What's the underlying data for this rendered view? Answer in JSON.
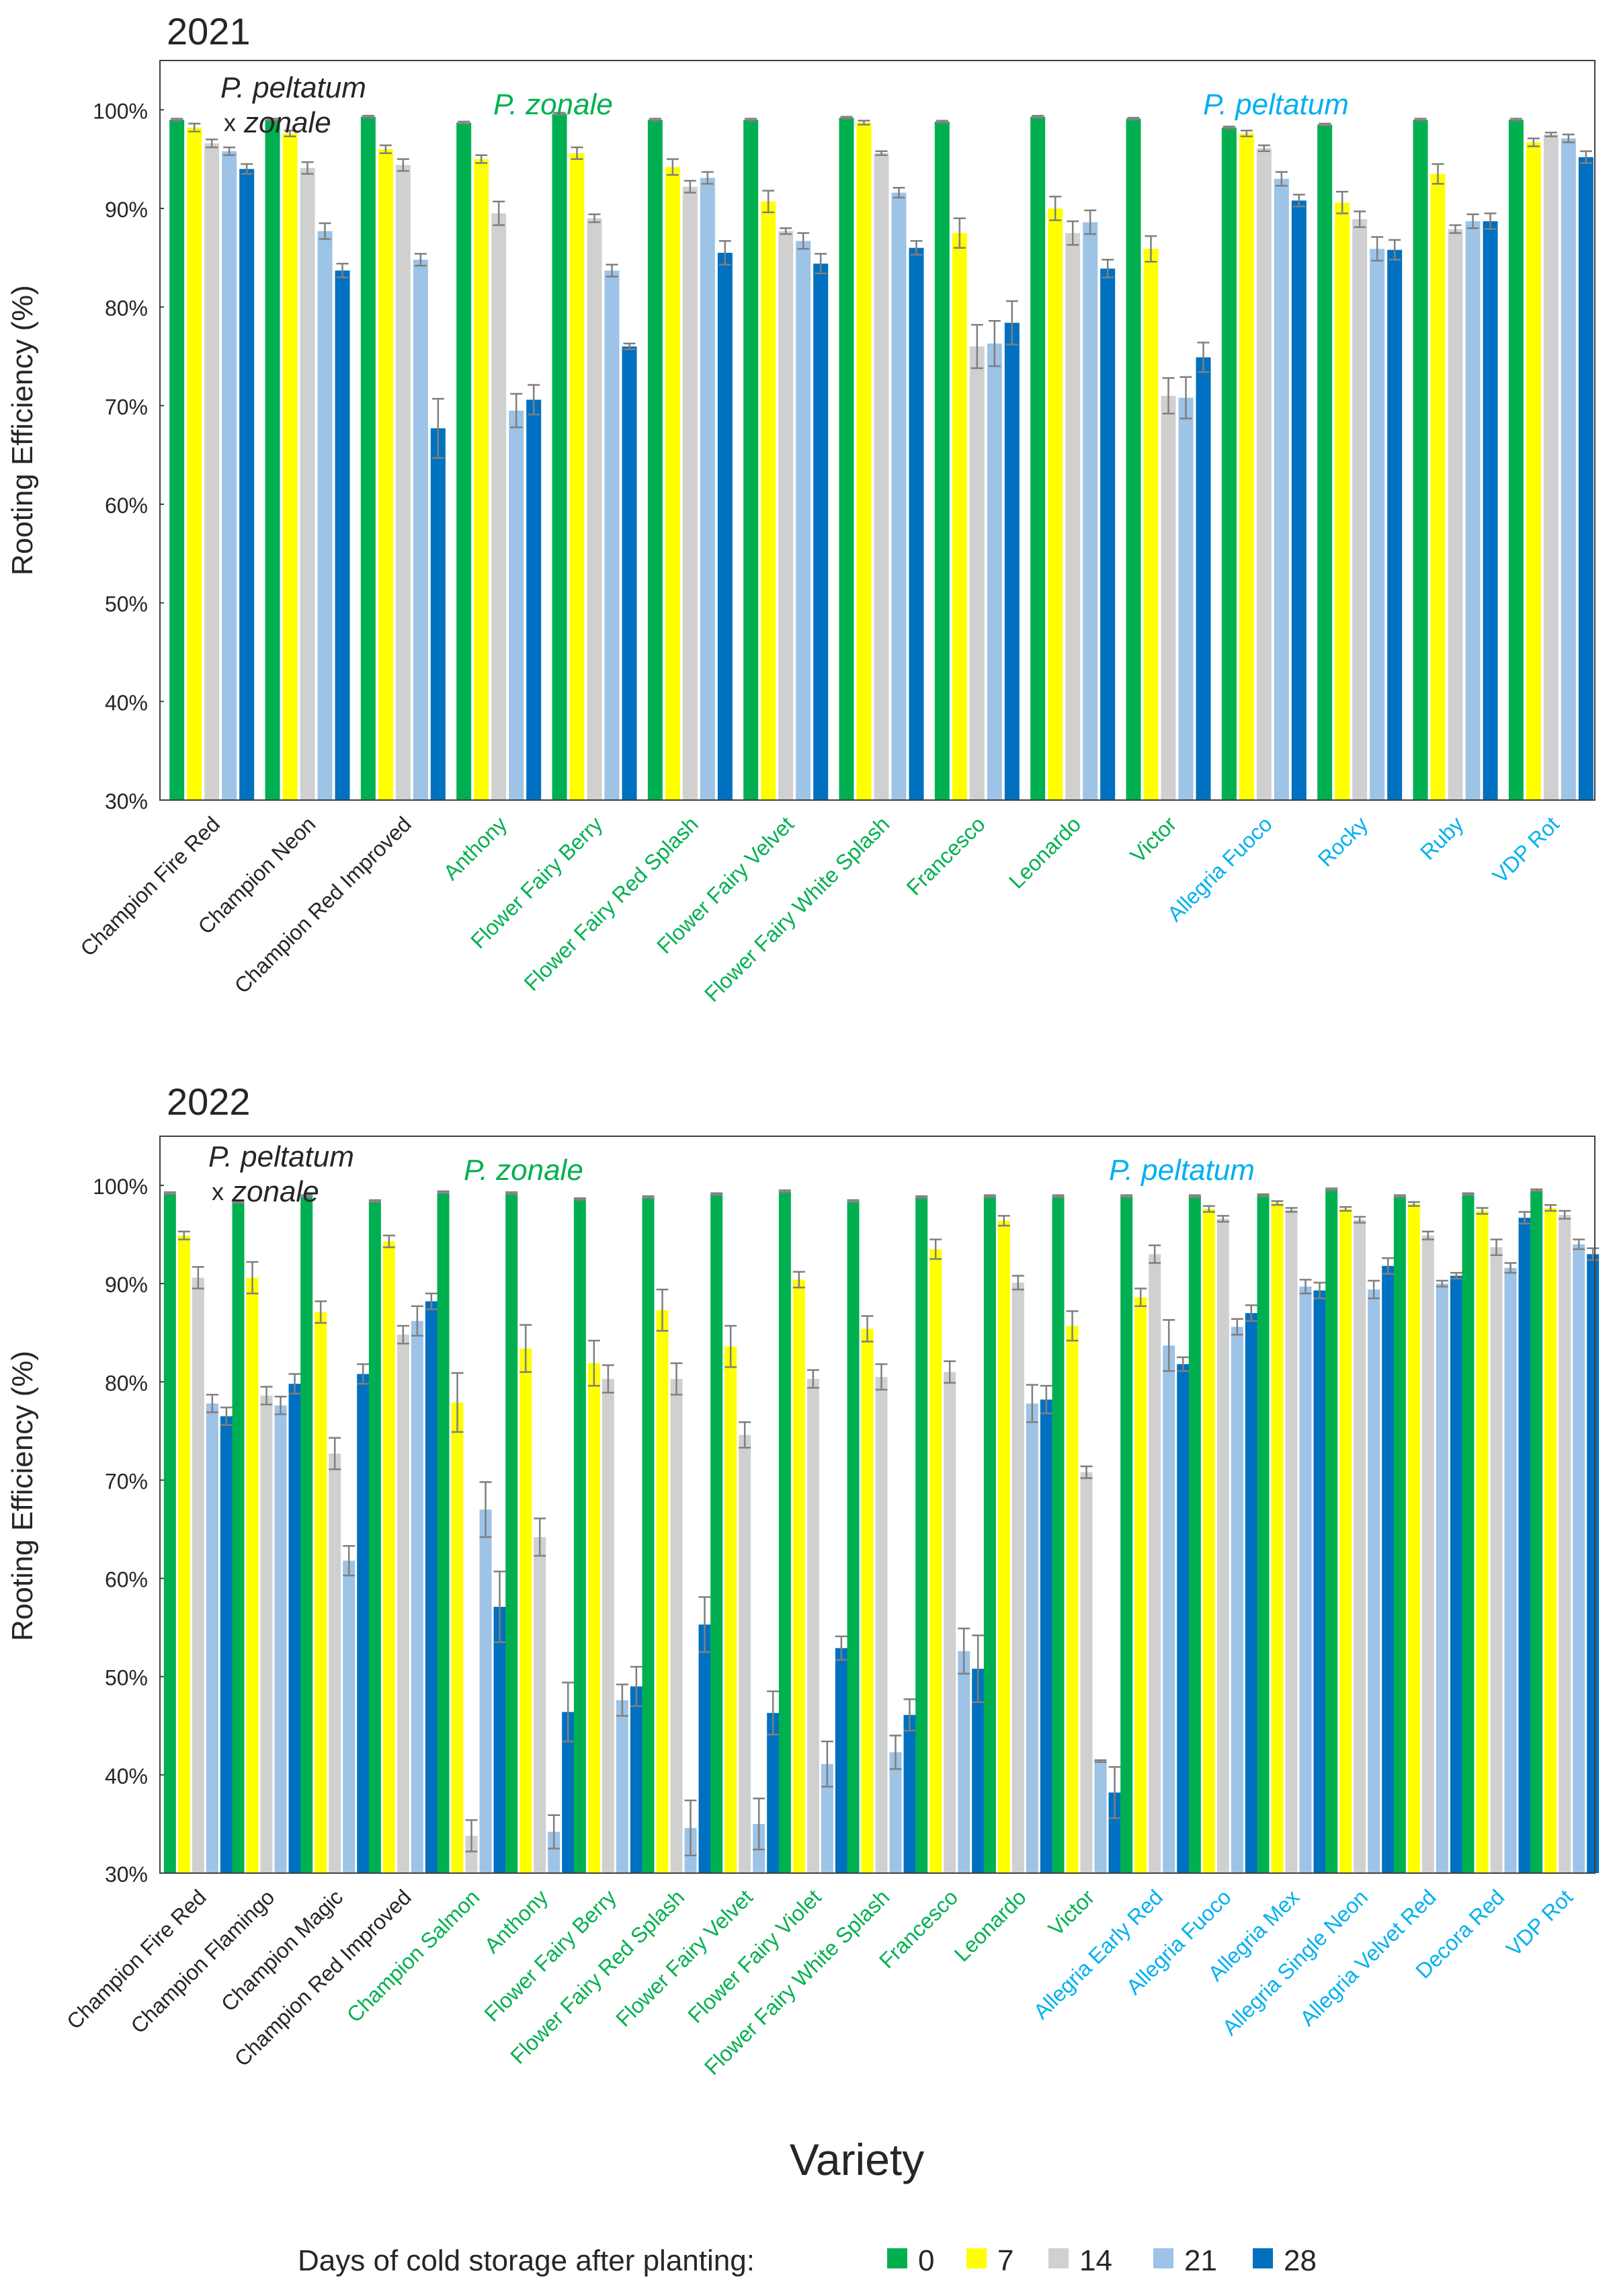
{
  "colors": {
    "zonale": "#00B050",
    "peltatum": "#00B0F0",
    "hybrid": "#262626",
    "s0": "#00B050",
    "s7": "#FFFF00",
    "s14": "#D0D0D0",
    "s21": "#9DC3E6",
    "s28": "#0070C0",
    "errorbar": "#7F7F7F"
  },
  "legend": {
    "title": "Days of cold storage after planting:",
    "labels": [
      "0",
      "7",
      "14",
      "21",
      "28"
    ]
  },
  "xlabel": "Variety",
  "chart_data": [
    {
      "type": "bar",
      "title": "2021",
      "ylabel": "Rooting Efficiency (%)",
      "ylim": [
        30,
        105
      ],
      "yticks": [
        "30%",
        "40%",
        "50%",
        "60%",
        "70%",
        "80%",
        "90%",
        "100%"
      ],
      "group_labels": {
        "hybrid_line1": "P. peltatum",
        "hybrid_line2_x": "x",
        "hybrid_line2": "zonale",
        "zonale": "P. zonale",
        "peltatum": "P. peltatum"
      },
      "series_names": [
        "0",
        "7",
        "14",
        "21",
        "28"
      ],
      "categories": [
        {
          "name": "Champion Fire Red",
          "group": "hybrid"
        },
        {
          "name": "Champion Neon",
          "group": "hybrid"
        },
        {
          "name": "Champion Red Improved",
          "group": "hybrid"
        },
        {
          "name": "Anthony",
          "group": "zonale"
        },
        {
          "name": "Flower Fairy Berry",
          "group": "zonale"
        },
        {
          "name": "Flower Fairy Red Splash",
          "group": "zonale"
        },
        {
          "name": "Flower Fairy Velvet",
          "group": "zonale"
        },
        {
          "name": "Flower Fairy White Splash",
          "group": "zonale"
        },
        {
          "name": "Francesco",
          "group": "zonale"
        },
        {
          "name": "Leonardo",
          "group": "zonale"
        },
        {
          "name": "Victor",
          "group": "zonale"
        },
        {
          "name": "Allegria Fuoco",
          "group": "peltatum"
        },
        {
          "name": "Rocky",
          "group": "peltatum"
        },
        {
          "name": "Ruby",
          "group": "peltatum"
        },
        {
          "name": "VDP Rot",
          "group": "peltatum"
        }
      ],
      "values": [
        [
          99.0,
          98.2,
          96.6,
          95.8,
          94.0
        ],
        [
          99.0,
          97.6,
          94.1,
          87.7,
          83.7
        ],
        [
          99.3,
          96.0,
          94.4,
          84.8,
          67.7
        ],
        [
          98.7,
          95.0,
          89.5,
          69.5,
          70.6
        ],
        [
          99.6,
          95.6,
          89.0,
          83.7,
          76.0
        ],
        [
          99.0,
          94.2,
          92.2,
          93.1,
          85.5
        ],
        [
          99.0,
          90.7,
          87.7,
          86.7,
          84.4
        ],
        [
          99.2,
          98.7,
          95.6,
          91.6,
          86.0
        ],
        [
          98.8,
          87.5,
          76.0,
          76.3,
          78.4
        ],
        [
          99.3,
          90.0,
          87.5,
          88.6,
          83.9
        ],
        [
          99.1,
          85.9,
          71.0,
          70.8,
          74.9
        ],
        [
          98.2,
          97.6,
          96.1,
          93.0,
          90.8
        ],
        [
          98.5,
          90.6,
          88.9,
          85.9,
          85.8
        ],
        [
          99.0,
          93.5,
          87.9,
          88.7,
          88.7
        ],
        [
          99.0,
          96.7,
          97.5,
          97.1,
          95.2
        ]
      ],
      "errors": [
        [
          0.1,
          0.4,
          0.4,
          0.4,
          0.5
        ],
        [
          0.1,
          0.3,
          0.6,
          0.8,
          0.7
        ],
        [
          0.1,
          0.4,
          0.6,
          0.6,
          3.0
        ],
        [
          0.1,
          0.4,
          1.2,
          1.7,
          1.5
        ],
        [
          0.1,
          0.6,
          0.4,
          0.6,
          0.3
        ],
        [
          0.1,
          0.8,
          0.6,
          0.6,
          1.2
        ],
        [
          0.1,
          1.1,
          0.3,
          0.8,
          1.0
        ],
        [
          0.1,
          0.2,
          0.2,
          0.5,
          0.7
        ],
        [
          0.1,
          1.5,
          2.2,
          2.3,
          2.2
        ],
        [
          0.1,
          1.2,
          1.2,
          1.2,
          0.9
        ],
        [
          0.1,
          1.3,
          1.8,
          2.1,
          1.5
        ],
        [
          0.1,
          0.3,
          0.3,
          0.7,
          0.6
        ],
        [
          0.1,
          1.1,
          0.8,
          1.2,
          1.0
        ],
        [
          0.1,
          1.0,
          0.4,
          0.7,
          0.8
        ],
        [
          0.1,
          0.4,
          0.2,
          0.4,
          0.6
        ]
      ]
    },
    {
      "type": "bar",
      "title": "2022",
      "ylabel": "Rooting Efficiency (%)",
      "ylim": [
        30,
        105
      ],
      "yticks": [
        "30%",
        "40%",
        "50%",
        "60%",
        "70%",
        "80%",
        "90%",
        "100%"
      ],
      "group_labels": {
        "hybrid_line1": "P. peltatum",
        "hybrid_line2_x": "x",
        "hybrid_line2": "zonale",
        "zonale": "P. zonale",
        "peltatum": "P. peltatum"
      },
      "series_names": [
        "0",
        "7",
        "14",
        "21",
        "28"
      ],
      "categories": [
        {
          "name": "Champion Fire Red",
          "group": "hybrid"
        },
        {
          "name": "Champion Flamingo",
          "group": "hybrid"
        },
        {
          "name": "Champion Magic",
          "group": "hybrid"
        },
        {
          "name": "Champion Red Improved",
          "group": "hybrid"
        },
        {
          "name": "Champion Salmon",
          "group": "zonale"
        },
        {
          "name": "Anthony",
          "group": "zonale"
        },
        {
          "name": "Flower Fairy Berry",
          "group": "zonale"
        },
        {
          "name": "Flower Fairy Red Splash",
          "group": "zonale"
        },
        {
          "name": "Flower Fairy Velvet",
          "group": "zonale"
        },
        {
          "name": "Flower Fairy Violet",
          "group": "zonale"
        },
        {
          "name": "Flower Fairy White Splash",
          "group": "zonale"
        },
        {
          "name": "Francesco",
          "group": "zonale"
        },
        {
          "name": "Leonardo",
          "group": "zonale"
        },
        {
          "name": "Victor",
          "group": "zonale"
        },
        {
          "name": "Allegria Early Red",
          "group": "peltatum"
        },
        {
          "name": "Allegria Fuoco",
          "group": "peltatum"
        },
        {
          "name": "Allegria Mex",
          "group": "peltatum"
        },
        {
          "name": "Allegria Single Neon",
          "group": "peltatum"
        },
        {
          "name": "Allegria Velvet Red",
          "group": "peltatum"
        },
        {
          "name": "Decora Red",
          "group": "peltatum"
        },
        {
          "name": "VDP Rot",
          "group": "peltatum"
        }
      ],
      "values": [
        [
          99.2,
          94.9,
          90.6,
          77.8,
          76.5
        ],
        [
          98.3,
          90.6,
          78.6,
          77.6,
          79.8
        ],
        [
          98.9,
          87.1,
          72.7,
          61.8,
          80.8
        ],
        [
          98.4,
          94.3,
          84.8,
          86.2,
          88.2
        ],
        [
          99.3,
          77.9,
          33.8,
          67.0,
          57.1
        ],
        [
          99.2,
          83.4,
          64.2,
          34.2,
          46.4
        ],
        [
          98.6,
          81.9,
          80.3,
          47.6,
          49.0
        ],
        [
          98.8,
          87.3,
          80.3,
          34.6,
          55.3
        ],
        [
          99.1,
          83.6,
          74.6,
          35.0,
          46.3
        ],
        [
          99.4,
          90.4,
          80.3,
          41.1,
          52.9
        ],
        [
          98.4,
          85.4,
          80.5,
          42.3,
          46.1
        ],
        [
          98.8,
          93.5,
          81.0,
          52.6,
          50.8
        ],
        [
          98.9,
          96.4,
          90.1,
          77.8,
          78.2
        ],
        [
          98.9,
          85.7,
          70.8,
          41.4,
          38.2
        ],
        [
          98.9,
          88.6,
          93.0,
          83.7,
          81.8
        ],
        [
          98.9,
          97.6,
          96.6,
          85.6,
          87.0
        ],
        [
          99.0,
          98.2,
          97.5,
          89.7,
          89.3
        ],
        [
          99.6,
          97.6,
          96.5,
          89.4,
          91.8
        ],
        [
          98.9,
          98.1,
          94.9,
          90.0,
          90.8
        ],
        [
          99.1,
          97.4,
          93.7,
          91.6,
          96.7
        ],
        [
          99.5,
          97.7,
          97.0,
          94.0,
          93.0
        ]
      ],
      "errors": [
        [
          0.1,
          0.4,
          1.1,
          0.9,
          0.9
        ],
        [
          0.1,
          1.6,
          0.9,
          0.9,
          1.0
        ],
        [
          0.1,
          1.1,
          1.6,
          1.5,
          1.0
        ],
        [
          0.1,
          0.6,
          0.9,
          1.5,
          0.8
        ],
        [
          0.1,
          3.0,
          1.6,
          2.8,
          3.6
        ],
        [
          0.1,
          2.4,
          1.9,
          1.7,
          3.0
        ],
        [
          0.1,
          2.3,
          1.4,
          1.6,
          2.0
        ],
        [
          0.1,
          2.1,
          1.6,
          2.8,
          2.8
        ],
        [
          0.1,
          2.1,
          1.3,
          2.6,
          2.2
        ],
        [
          0.1,
          0.8,
          0.9,
          2.3,
          1.2
        ],
        [
          0.1,
          1.3,
          1.3,
          1.7,
          1.6
        ],
        [
          0.1,
          1.0,
          1.1,
          2.3,
          3.4
        ],
        [
          0.1,
          0.5,
          0.7,
          1.9,
          1.4
        ],
        [
          0.1,
          1.5,
          0.6,
          0.1,
          2.6
        ],
        [
          0.1,
          0.9,
          0.9,
          2.6,
          0.7
        ],
        [
          0.1,
          0.3,
          0.3,
          0.8,
          0.8
        ],
        [
          0.1,
          0.2,
          0.2,
          0.7,
          0.8
        ],
        [
          0.1,
          0.2,
          0.3,
          0.9,
          0.8
        ],
        [
          0.1,
          0.2,
          0.4,
          0.3,
          0.3
        ],
        [
          0.1,
          0.3,
          0.8,
          0.5,
          0.6
        ],
        [
          0.1,
          0.3,
          0.4,
          0.5,
          0.6
        ]
      ]
    }
  ]
}
